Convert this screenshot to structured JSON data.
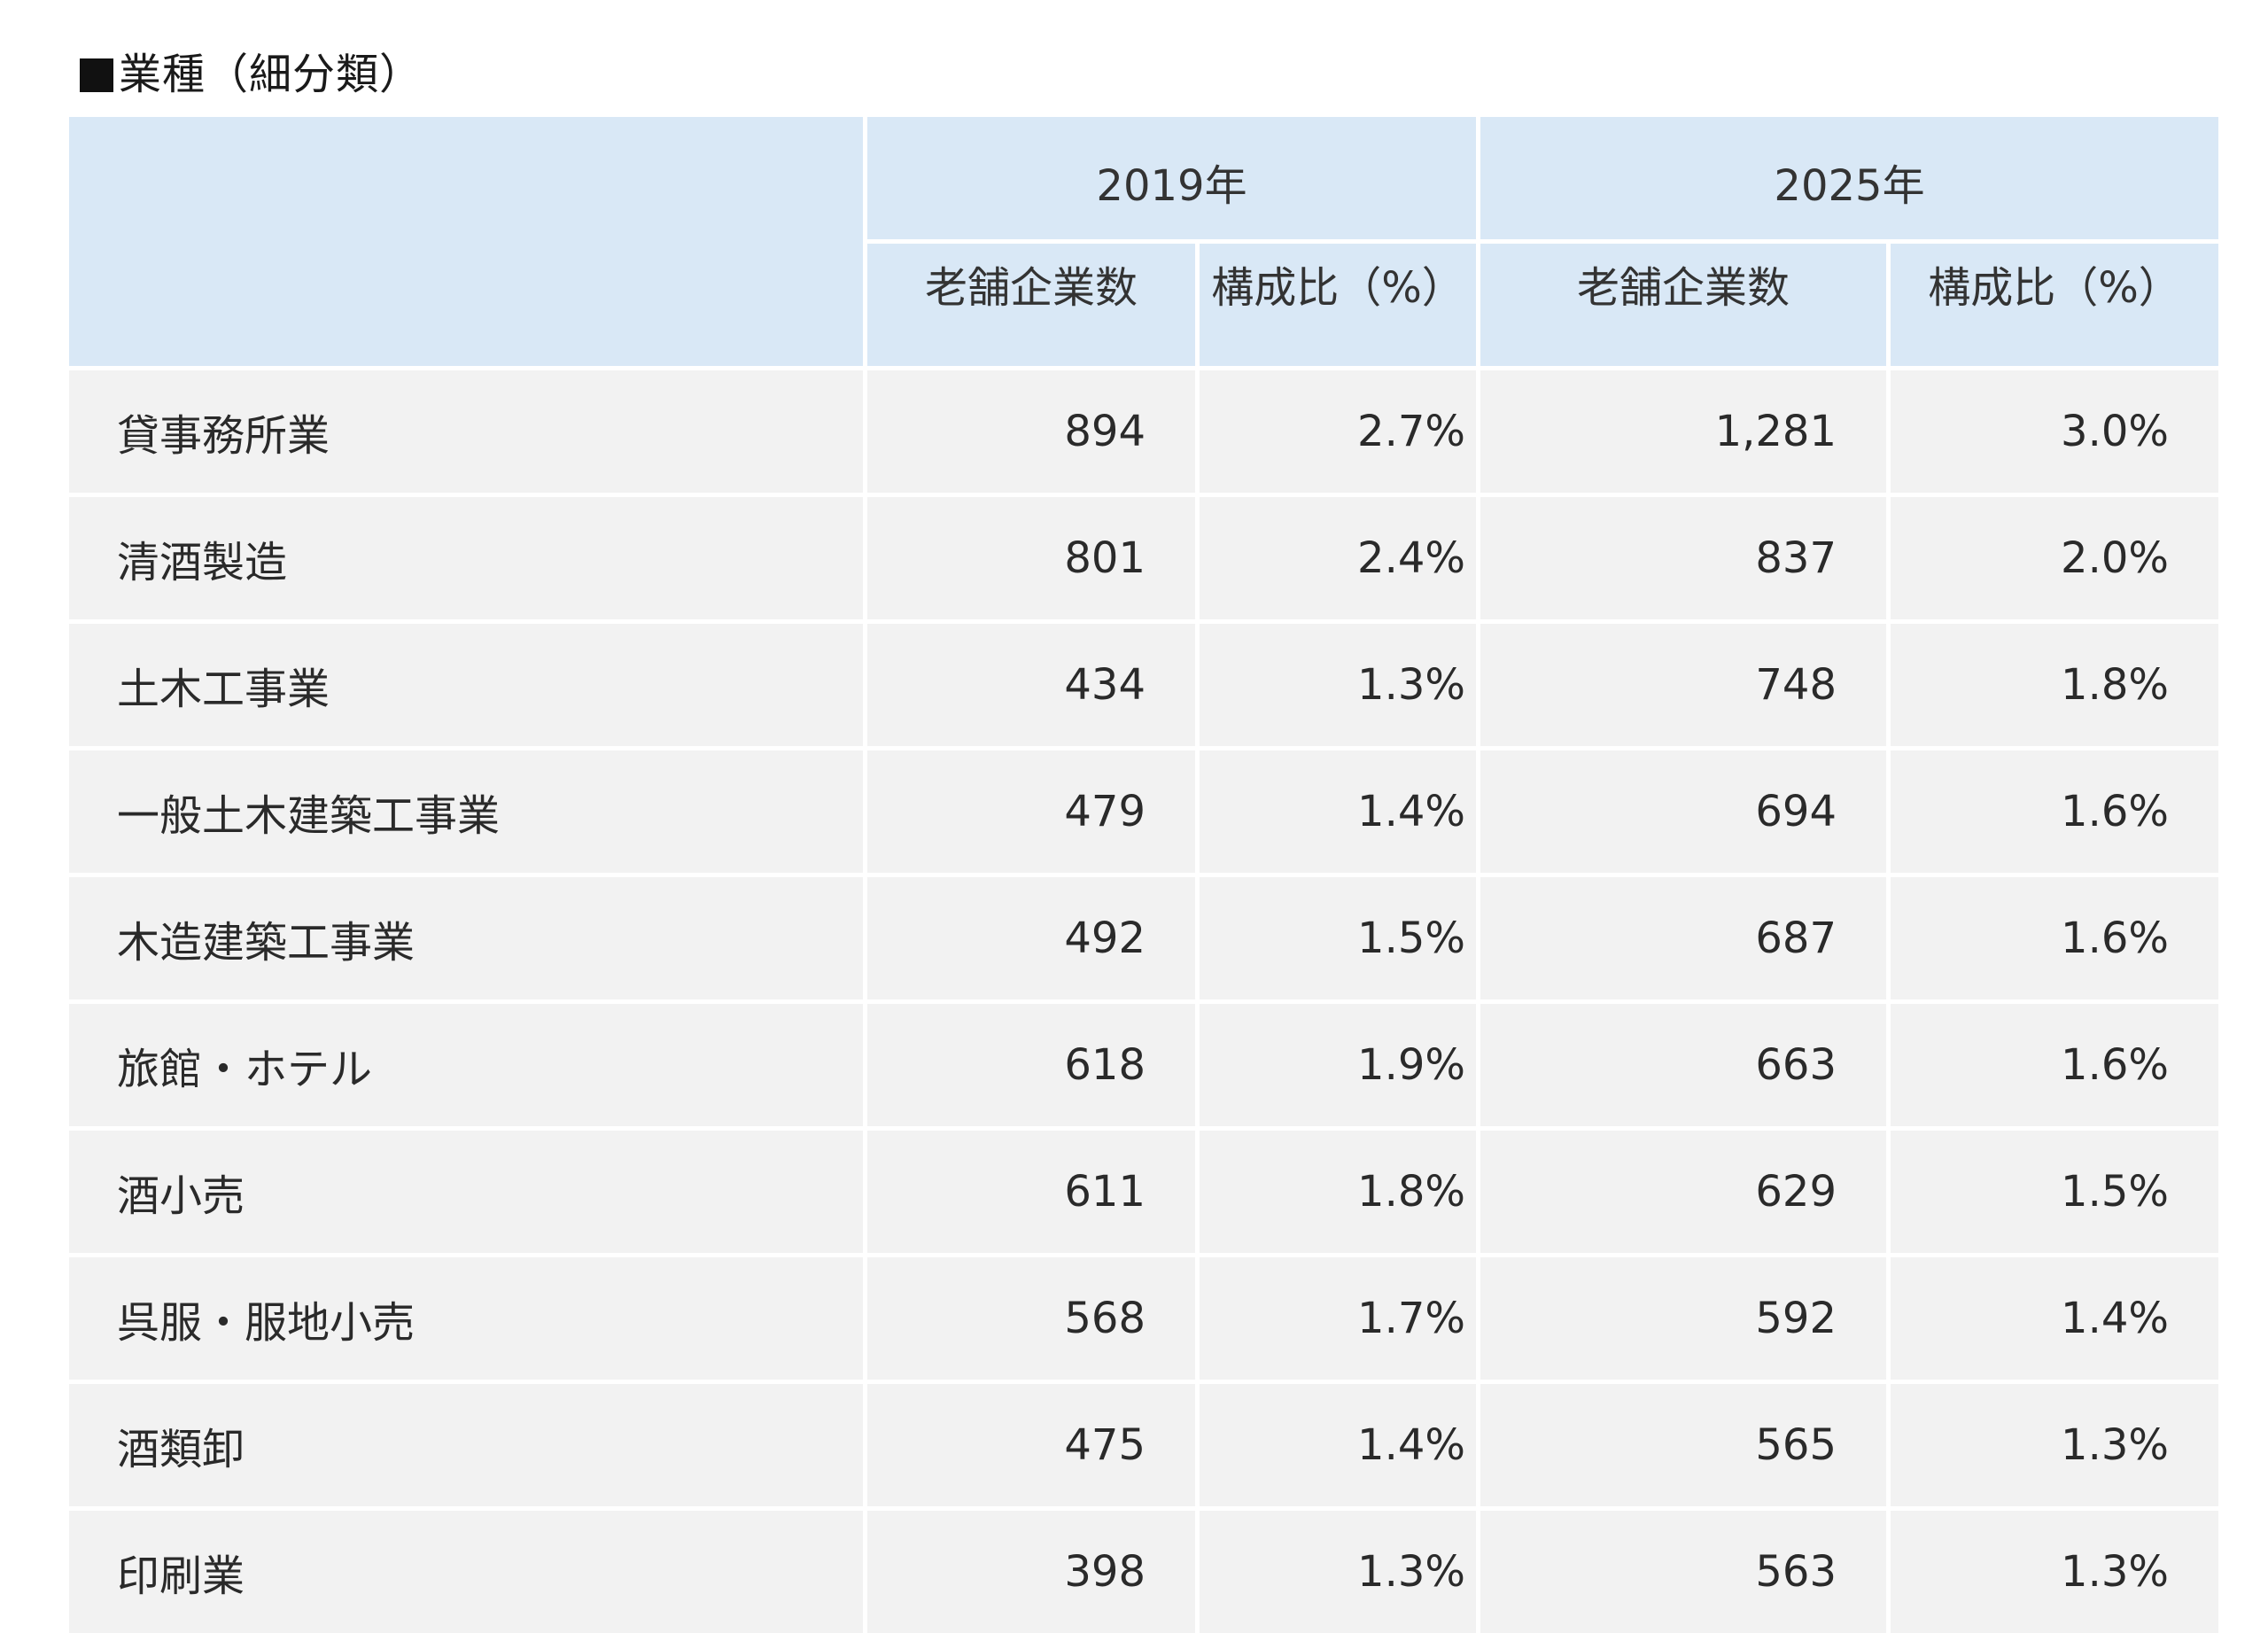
{
  "title": "■業種（細分類）",
  "table": {
    "header": {
      "years": [
        "2019年",
        "2025年"
      ],
      "sub": [
        "老舗企業数",
        "構成比（%）",
        "老舗企業数",
        "構成比（%）"
      ]
    },
    "rows": [
      {
        "name": "貸事務所業",
        "c2019": "894",
        "p2019": "2.7%",
        "c2025": "1,281",
        "p2025": "3.0%"
      },
      {
        "name": "清酒製造",
        "c2019": "801",
        "p2019": "2.4%",
        "c2025": "837",
        "p2025": "2.0%"
      },
      {
        "name": "土木工事業",
        "c2019": "434",
        "p2019": "1.3%",
        "c2025": "748",
        "p2025": "1.8%"
      },
      {
        "name": "一般土木建築工事業",
        "c2019": "479",
        "p2019": "1.4%",
        "c2025": "694",
        "p2025": "1.6%"
      },
      {
        "name": "木造建築工事業",
        "c2019": "492",
        "p2019": "1.5%",
        "c2025": "687",
        "p2025": "1.6%"
      },
      {
        "name": "旅館・ホテル",
        "c2019": "618",
        "p2019": "1.9%",
        "c2025": "663",
        "p2025": "1.6%"
      },
      {
        "name": "酒小売",
        "c2019": "611",
        "p2019": "1.8%",
        "c2025": "629",
        "p2025": "1.5%"
      },
      {
        "name": "呉服・服地小売",
        "c2019": "568",
        "p2019": "1.7%",
        "c2025": "592",
        "p2025": "1.4%"
      },
      {
        "name": "酒類卸",
        "c2019": "475",
        "p2019": "1.4%",
        "c2025": "565",
        "p2025": "1.3%"
      },
      {
        "name": "印刷業",
        "c2019": "398",
        "p2019": "1.3%",
        "c2025": "563",
        "p2025": "1.3%"
      }
    ]
  },
  "chart_data": {
    "type": "table",
    "title": "■業種（細分類）",
    "columns": [
      "",
      "2019年 老舗企業数",
      "2019年 構成比（%）",
      "2025年 老舗企業数",
      "2025年 構成比（%）"
    ],
    "categories": [
      "貸事務所業",
      "清酒製造",
      "土木工事業",
      "一般土木建築工事業",
      "木造建築工事業",
      "旅館・ホテル",
      "酒小売",
      "呉服・服地小売",
      "酒類卸",
      "印刷業"
    ],
    "series": [
      {
        "name": "2019年 老舗企業数",
        "values": [
          894,
          801,
          434,
          479,
          492,
          618,
          611,
          568,
          475,
          398
        ]
      },
      {
        "name": "2019年 構成比（%）",
        "values": [
          2.7,
          2.4,
          1.3,
          1.4,
          1.5,
          1.9,
          1.8,
          1.7,
          1.4,
          1.3
        ]
      },
      {
        "name": "2025年 老舗企業数",
        "values": [
          1281,
          837,
          748,
          694,
          687,
          663,
          629,
          592,
          565,
          563
        ]
      },
      {
        "name": "2025年 構成比（%）",
        "values": [
          3.0,
          2.0,
          1.8,
          1.6,
          1.6,
          1.6,
          1.5,
          1.4,
          1.3,
          1.3
        ]
      }
    ],
    "colors": {
      "header_bg": "#d9e8f6",
      "cell_bg": "#f2f2f2",
      "divider": "#ffffff"
    }
  }
}
